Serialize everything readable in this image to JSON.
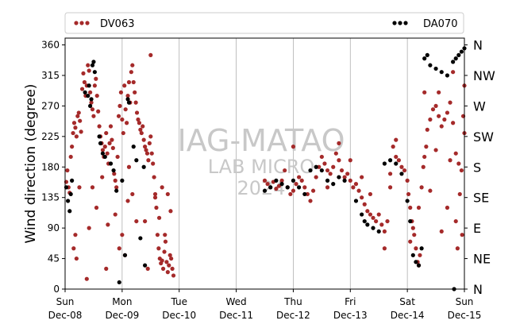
{
  "chart_data": {
    "type": "scatter",
    "ylabel": "Wind direction (degree)",
    "xlabel": "",
    "ylim": [
      0,
      370
    ],
    "y_ticks": [
      0,
      45,
      90,
      135,
      180,
      225,
      270,
      315,
      360
    ],
    "compass": [
      {
        "deg": 0,
        "label": "N"
      },
      {
        "deg": 45,
        "label": "NE"
      },
      {
        "deg": 90,
        "label": "E"
      },
      {
        "deg": 135,
        "label": "SE"
      },
      {
        "deg": 180,
        "label": "S"
      },
      {
        "deg": 225,
        "label": "SW"
      },
      {
        "deg": 270,
        "label": "W"
      },
      {
        "deg": 315,
        "label": "NW"
      },
      {
        "deg": 360,
        "label": "N"
      }
    ],
    "x_ticks": [
      {
        "day": "Sun",
        "date": "Dec-08"
      },
      {
        "day": "Mon",
        "date": "Dec-09"
      },
      {
        "day": "Tue",
        "date": "Dec-10"
      },
      {
        "day": "Wed",
        "date": "Dec-11"
      },
      {
        "day": "Thu",
        "date": "Dec-12"
      },
      {
        "day": "Fri",
        "date": "Dec-13"
      },
      {
        "day": "Sat",
        "date": "Dec-14"
      },
      {
        "day": "Sun",
        "date": "Dec-15"
      }
    ],
    "grid": "vertical",
    "legend": "top",
    "watermark": {
      "line1": "IAG-MATAO",
      "line2": "LAB MICRO",
      "line3": "2024"
    },
    "series": [
      {
        "name": "DV063",
        "color": "#a52a2a",
        "marker": "dot",
        "points": [
          [
            0.02,
            158
          ],
          [
            0.04,
            175
          ],
          [
            0.06,
            150
          ],
          [
            0.08,
            142
          ],
          [
            0.1,
            195
          ],
          [
            0.12,
            210
          ],
          [
            0.14,
            230
          ],
          [
            0.16,
            245
          ],
          [
            0.18,
            238
          ],
          [
            0.2,
            225
          ],
          [
            0.22,
            255
          ],
          [
            0.24,
            260
          ],
          [
            0.26,
            248
          ],
          [
            0.28,
            232
          ],
          [
            0.3,
            295
          ],
          [
            0.32,
            318
          ],
          [
            0.34,
            305
          ],
          [
            0.36,
            285
          ],
          [
            0.38,
            300
          ],
          [
            0.4,
            330
          ],
          [
            0.42,
            322
          ],
          [
            0.44,
            290
          ],
          [
            0.46,
            275
          ],
          [
            0.48,
            265
          ],
          [
            0.5,
            255
          ],
          [
            0.52,
            300
          ],
          [
            0.54,
            310
          ],
          [
            0.56,
            285
          ],
          [
            0.58,
            262
          ],
          [
            0.6,
            240
          ],
          [
            0.62,
            225
          ],
          [
            0.64,
            215
          ],
          [
            0.66,
            205
          ],
          [
            0.68,
            195
          ],
          [
            0.7,
            210
          ],
          [
            0.72,
            230
          ],
          [
            0.74,
            200
          ],
          [
            0.76,
            185
          ],
          [
            0.78,
            215
          ],
          [
            0.8,
            240
          ],
          [
            0.82,
            220
          ],
          [
            0.84,
            208
          ],
          [
            0.86,
            170
          ],
          [
            0.88,
            160
          ],
          [
            0.9,
            150
          ],
          [
            0.92,
            195
          ],
          [
            0.94,
            255
          ],
          [
            0.96,
            270
          ],
          [
            0.98,
            290
          ],
          [
            1.0,
            250
          ],
          [
            1.02,
            230
          ],
          [
            1.04,
            300
          ],
          [
            1.06,
            265
          ],
          [
            1.08,
            245
          ],
          [
            1.1,
            285
          ],
          [
            1.12,
            305
          ],
          [
            1.14,
            275
          ],
          [
            1.16,
            320
          ],
          [
            1.18,
            330
          ],
          [
            1.2,
            305
          ],
          [
            1.22,
            290
          ],
          [
            1.24,
            275
          ],
          [
            1.26,
            260
          ],
          [
            1.28,
            250
          ],
          [
            1.3,
            245
          ],
          [
            1.32,
            235
          ],
          [
            1.34,
            230
          ],
          [
            1.36,
            240
          ],
          [
            1.38,
            220
          ],
          [
            1.4,
            210
          ],
          [
            1.42,
            205
          ],
          [
            1.44,
            200
          ],
          [
            1.46,
            190
          ],
          [
            1.48,
            215
          ],
          [
            1.5,
            225
          ],
          [
            1.52,
            200
          ],
          [
            1.54,
            185
          ],
          [
            1.56,
            165
          ],
          [
            1.58,
            140
          ],
          [
            1.6,
            120
          ],
          [
            1.62,
            80
          ],
          [
            1.64,
            60
          ],
          [
            1.66,
            45
          ],
          [
            1.68,
            38
          ],
          [
            1.7,
            42
          ],
          [
            1.72,
            30
          ],
          [
            1.74,
            55
          ],
          [
            1.76,
            70
          ],
          [
            1.78,
            40
          ],
          [
            1.8,
            25
          ],
          [
            1.82,
            35
          ],
          [
            1.84,
            50
          ],
          [
            1.86,
            45
          ],
          [
            1.88,
            30
          ],
          [
            1.9,
            20
          ],
          [
            0.15,
            60
          ],
          [
            0.18,
            80
          ],
          [
            0.2,
            45
          ],
          [
            0.25,
            150
          ],
          [
            0.38,
            15
          ],
          [
            0.42,
            90
          ],
          [
            0.48,
            150
          ],
          [
            0.55,
            120
          ],
          [
            0.65,
            165
          ],
          [
            0.72,
            30
          ],
          [
            0.75,
            95
          ],
          [
            0.88,
            110
          ],
          [
            0.95,
            60
          ],
          [
            1.0,
            80
          ],
          [
            1.05,
            50
          ],
          [
            1.1,
            130
          ],
          [
            1.12,
            180
          ],
          [
            1.18,
            140
          ],
          [
            1.25,
            100
          ],
          [
            1.4,
            100
          ],
          [
            1.45,
            30
          ],
          [
            1.5,
            345
          ],
          [
            1.58,
            135
          ],
          [
            1.65,
            105
          ],
          [
            1.7,
            150
          ],
          [
            1.75,
            80
          ],
          [
            1.8,
            140
          ],
          [
            1.85,
            115
          ],
          [
            3.5,
            160
          ],
          [
            3.55,
            155
          ],
          [
            3.6,
            150
          ],
          [
            3.65,
            158
          ],
          [
            3.7,
            148
          ],
          [
            3.75,
            152
          ],
          [
            3.8,
            160
          ],
          [
            3.85,
            175
          ],
          [
            3.9,
            150
          ],
          [
            3.95,
            140
          ],
          [
            4.0,
            145
          ],
          [
            4.05,
            155
          ],
          [
            4.1,
            165
          ],
          [
            4.15,
            160
          ],
          [
            4.2,
            150
          ],
          [
            4.25,
            140
          ],
          [
            4.3,
            130
          ],
          [
            4.35,
            145
          ],
          [
            4.4,
            165
          ],
          [
            4.45,
            180
          ],
          [
            4.5,
            195
          ],
          [
            4.55,
            185
          ],
          [
            4.6,
            175
          ],
          [
            4.65,
            170
          ],
          [
            4.7,
            180
          ],
          [
            4.75,
            200
          ],
          [
            4.8,
            190
          ],
          [
            4.85,
            175
          ],
          [
            4.9,
            165
          ],
          [
            4.95,
            170
          ],
          [
            5.0,
            160
          ],
          [
            5.05,
            150
          ],
          [
            5.1,
            155
          ],
          [
            5.15,
            145
          ],
          [
            5.2,
            135
          ],
          [
            5.25,
            125
          ],
          [
            5.3,
            115
          ],
          [
            5.35,
            110
          ],
          [
            5.4,
            105
          ],
          [
            5.45,
            100
          ],
          [
            5.5,
            110
          ],
          [
            5.55,
            95
          ],
          [
            5.6,
            85
          ],
          [
            5.65,
            100
          ],
          [
            5.7,
            170
          ],
          [
            5.75,
            210
          ],
          [
            5.8,
            195
          ],
          [
            5.85,
            190
          ],
          [
            5.9,
            180
          ],
          [
            5.95,
            175
          ],
          [
            6.0,
            160
          ],
          [
            6.02,
            140
          ],
          [
            6.05,
            120
          ],
          [
            6.08,
            100
          ],
          [
            6.1,
            90
          ],
          [
            6.12,
            80
          ],
          [
            6.15,
            60
          ],
          [
            6.18,
            40
          ],
          [
            6.2,
            35
          ],
          [
            6.22,
            50
          ],
          [
            6.25,
            150
          ],
          [
            6.28,
            180
          ],
          [
            6.3,
            195
          ],
          [
            6.33,
            210
          ],
          [
            6.35,
            235
          ],
          [
            6.4,
            250
          ],
          [
            6.45,
            265
          ],
          [
            6.5,
            270
          ],
          [
            6.55,
            255
          ],
          [
            6.6,
            240
          ],
          [
            6.65,
            250
          ],
          [
            6.7,
            260
          ],
          [
            6.75,
            275
          ],
          [
            6.8,
            245
          ],
          [
            6.85,
            200
          ],
          [
            6.9,
            185
          ],
          [
            6.95,
            175
          ],
          [
            7.0,
            300
          ],
          [
            4.0,
            210
          ],
          [
            4.6,
            150
          ],
          [
            4.8,
            215
          ],
          [
            5.0,
            190
          ],
          [
            5.2,
            165
          ],
          [
            5.35,
            140
          ],
          [
            5.6,
            60
          ],
          [
            5.7,
            150
          ],
          [
            5.8,
            220
          ],
          [
            6.05,
            70
          ],
          [
            6.2,
            120
          ],
          [
            6.3,
            290
          ],
          [
            6.4,
            145
          ],
          [
            6.5,
            205
          ],
          [
            6.55,
            290
          ],
          [
            6.6,
            85
          ],
          [
            6.7,
            120
          ],
          [
            6.75,
            190
          ],
          [
            6.8,
            320
          ],
          [
            6.85,
            100
          ],
          [
            6.88,
            60
          ],
          [
            6.92,
            140
          ],
          [
            6.96,
            80
          ],
          [
            6.98,
            255
          ],
          [
            7.0,
            230
          ]
        ]
      },
      {
        "name": "DA070",
        "color": "#000000",
        "marker": "dot",
        "points": [
          [
            0.02,
            150
          ],
          [
            0.05,
            130
          ],
          [
            0.08,
            115
          ],
          [
            0.1,
            140
          ],
          [
            0.12,
            160
          ],
          [
            0.35,
            290
          ],
          [
            0.4,
            285
          ],
          [
            0.42,
            300
          ],
          [
            0.44,
            270
          ],
          [
            0.46,
            280
          ],
          [
            0.48,
            330
          ],
          [
            0.5,
            335
          ],
          [
            0.52,
            320
          ],
          [
            0.6,
            225
          ],
          [
            0.62,
            215
          ],
          [
            0.66,
            200
          ],
          [
            0.7,
            195
          ],
          [
            0.8,
            185
          ],
          [
            0.85,
            175
          ],
          [
            0.9,
            145
          ],
          [
            1.0,
            160
          ],
          [
            1.05,
            50
          ],
          [
            1.1,
            280
          ],
          [
            1.12,
            275
          ],
          [
            1.2,
            210
          ],
          [
            1.25,
            190
          ],
          [
            1.38,
            180
          ],
          [
            1.4,
            35
          ],
          [
            1.32,
            75
          ],
          [
            0.95,
            10
          ],
          [
            3.5,
            145
          ],
          [
            3.6,
            150
          ],
          [
            3.7,
            160
          ],
          [
            3.8,
            155
          ],
          [
            3.9,
            150
          ],
          [
            4.0,
            160
          ],
          [
            4.1,
            150
          ],
          [
            4.2,
            140
          ],
          [
            4.3,
            175
          ],
          [
            4.4,
            180
          ],
          [
            4.5,
            175
          ],
          [
            4.6,
            160
          ],
          [
            4.7,
            155
          ],
          [
            4.8,
            165
          ],
          [
            4.9,
            160
          ],
          [
            5.1,
            130
          ],
          [
            5.2,
            110
          ],
          [
            5.25,
            100
          ],
          [
            5.3,
            95
          ],
          [
            5.4,
            90
          ],
          [
            5.5,
            85
          ],
          [
            5.6,
            185
          ],
          [
            5.7,
            190
          ],
          [
            5.8,
            185
          ],
          [
            5.9,
            170
          ],
          [
            6.0,
            130
          ],
          [
            6.05,
            100
          ],
          [
            6.1,
            50
          ],
          [
            6.15,
            40
          ],
          [
            6.2,
            35
          ],
          [
            6.25,
            60
          ],
          [
            6.3,
            340
          ],
          [
            6.35,
            345
          ],
          [
            6.4,
            330
          ],
          [
            6.5,
            325
          ],
          [
            6.6,
            320
          ],
          [
            6.7,
            315
          ],
          [
            6.8,
            335
          ],
          [
            6.85,
            340
          ],
          [
            6.9,
            345
          ],
          [
            6.95,
            350
          ],
          [
            7.0,
            355
          ],
          [
            6.82,
            0
          ]
        ]
      }
    ]
  }
}
